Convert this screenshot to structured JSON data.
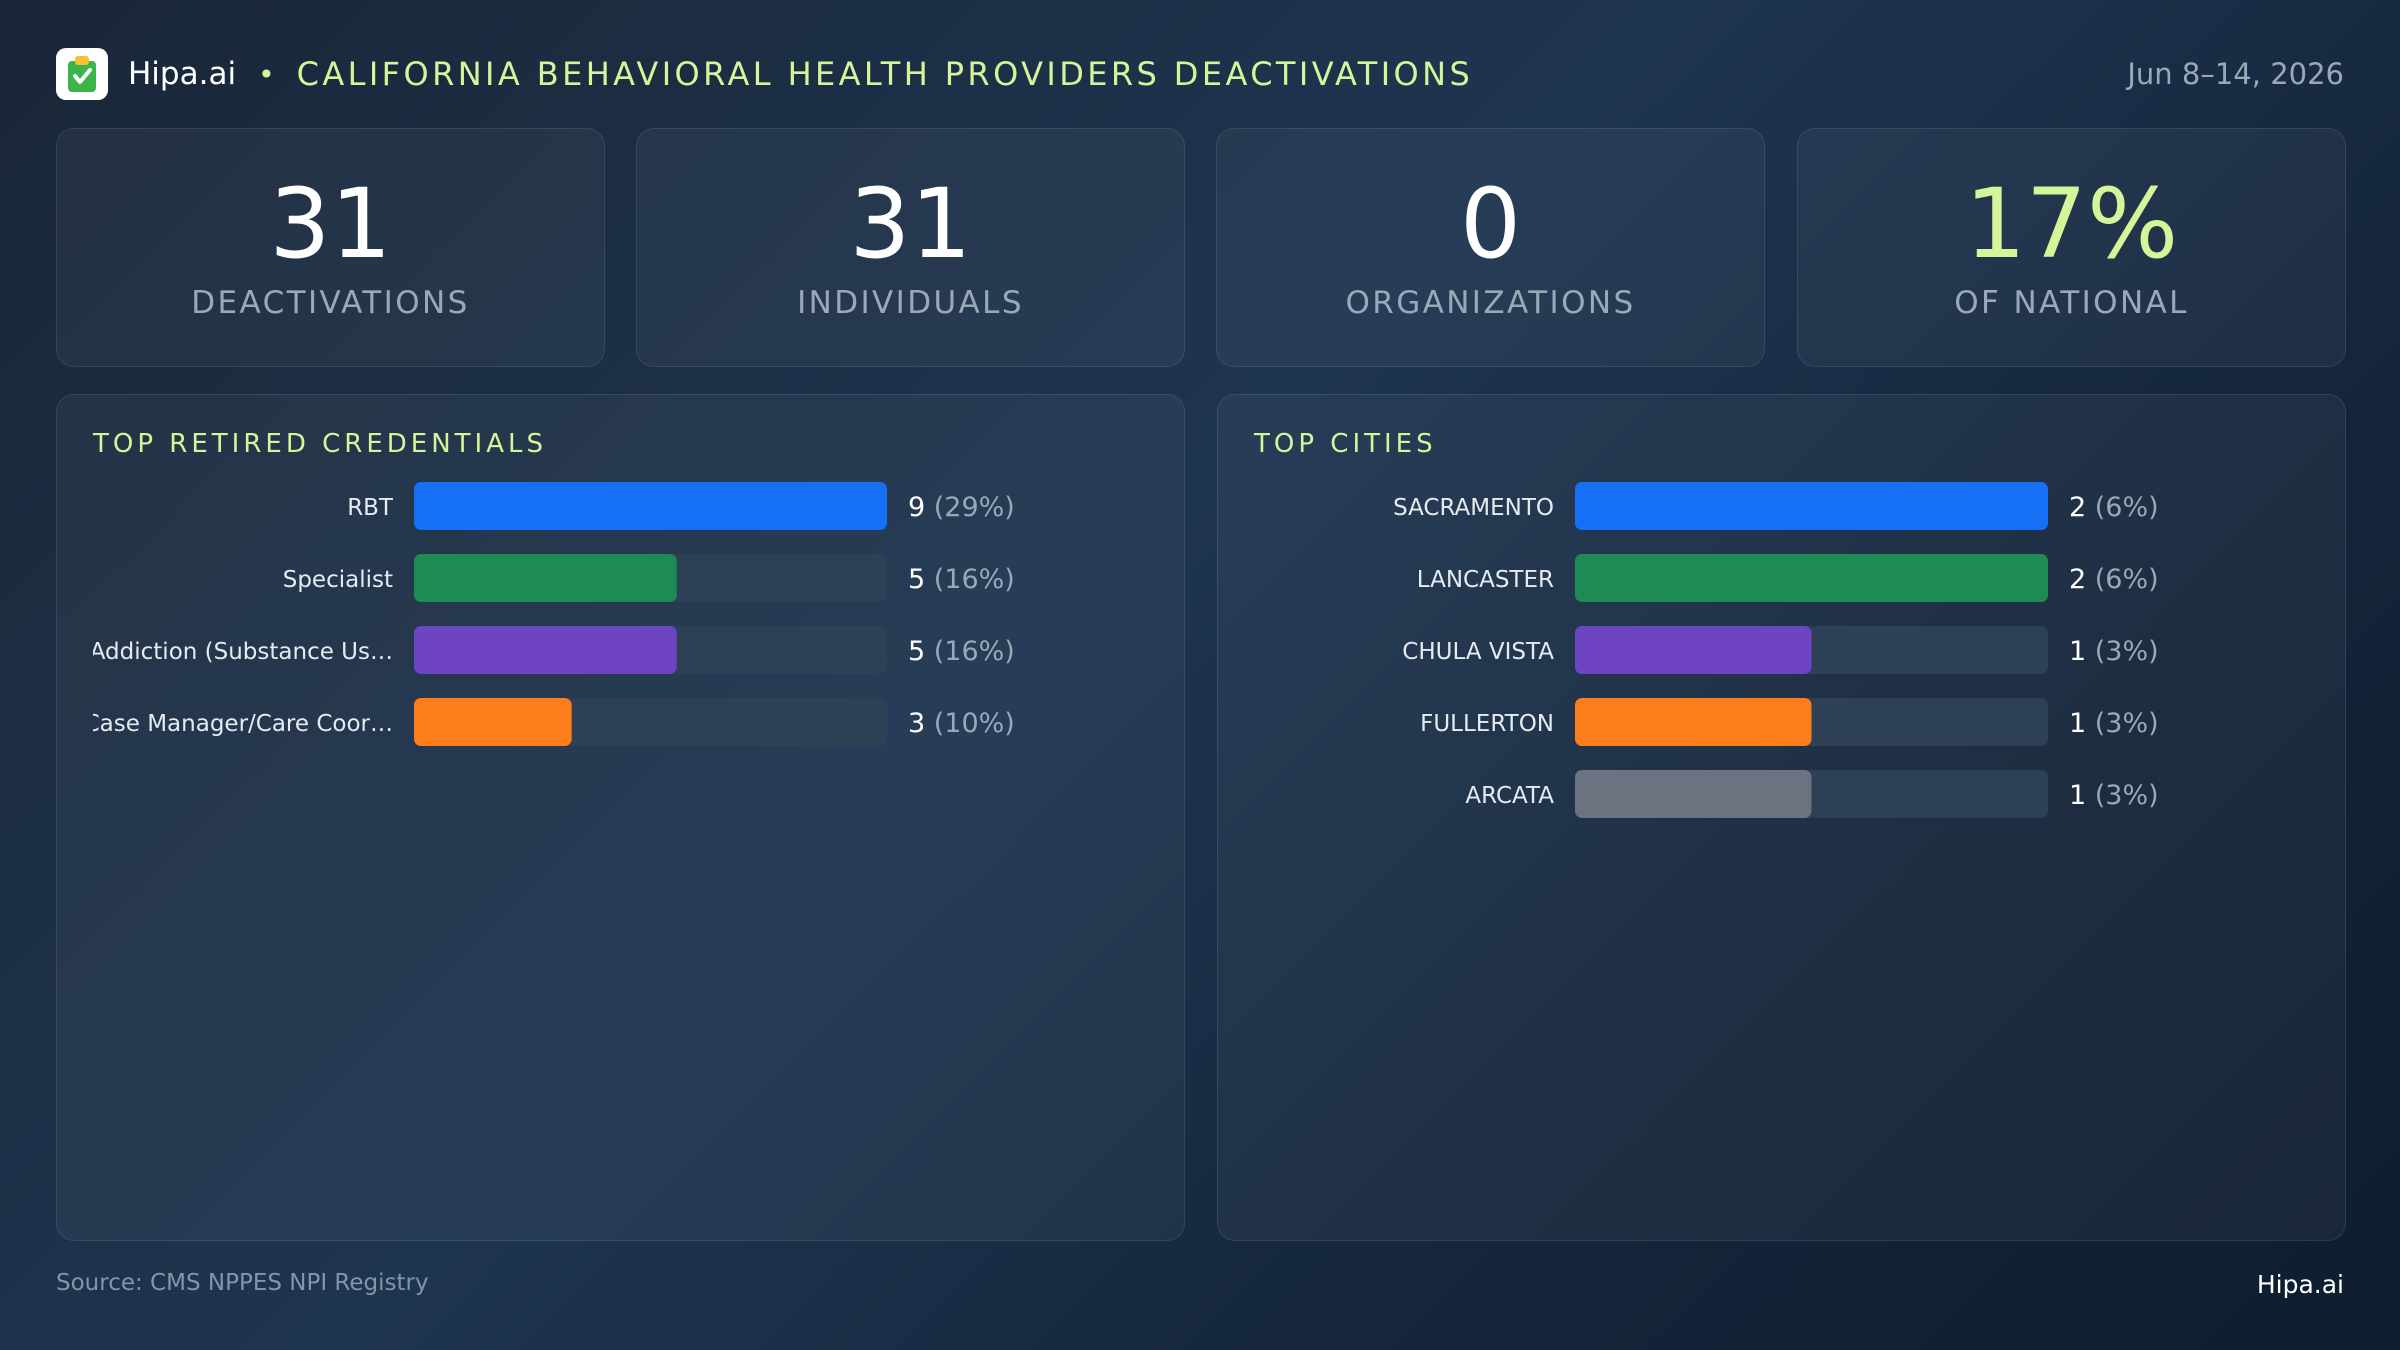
{
  "header": {
    "brand": "Hipa.ai",
    "bullet": "•",
    "title": "CALIFORNIA BEHAVIORAL HEALTH PROVIDERS DEACTIVATIONS",
    "date": "Jun 8–14, 2026",
    "logo_icon": "clipboard-check-icon"
  },
  "kpis": [
    {
      "value": "31",
      "label": "DEACTIVATIONS"
    },
    {
      "value": "31",
      "label": "INDIVIDUALS"
    },
    {
      "value": "0",
      "label": "ORGANIZATIONS"
    },
    {
      "value": "17%",
      "label": "OF NATIONAL",
      "accent": true
    }
  ],
  "colors": {
    "accent": "#d4f59a",
    "track": "#2e4056",
    "bar_colors": [
      "#1670f5",
      "#1e8a54",
      "#6f44c2",
      "#fd7d1a",
      "#6b7280"
    ]
  },
  "chart_data": [
    {
      "type": "bar",
      "orientation": "horizontal",
      "title": "TOP RETIRED CREDENTIALS",
      "categories": [
        "RBT",
        "Specialist",
        "Addiction (Substance Us…",
        "Case Manager/Care Coor…"
      ],
      "values": [
        9,
        5,
        5,
        3
      ],
      "value_labels": [
        "9",
        "5",
        "5",
        "3"
      ],
      "percent_labels": [
        "(29%)",
        "(16%)",
        "(16%)",
        "(10%)"
      ],
      "xlim": [
        0,
        9
      ],
      "grid": false
    },
    {
      "type": "bar",
      "orientation": "horizontal",
      "title": "TOP CITIES",
      "categories": [
        "SACRAMENTO",
        "LANCASTER",
        "CHULA VISTA",
        "FULLERTON",
        "ARCATA"
      ],
      "values": [
        2,
        2,
        1,
        1,
        1
      ],
      "value_labels": [
        "2",
        "2",
        "1",
        "1",
        "1"
      ],
      "percent_labels": [
        "(6%)",
        "(6%)",
        "(3%)",
        "(3%)",
        "(3%)"
      ],
      "xlim": [
        0,
        2
      ],
      "grid": false
    }
  ],
  "footer": {
    "source": "Source: CMS NPPES NPI Registry",
    "brand": "Hipa.ai"
  }
}
